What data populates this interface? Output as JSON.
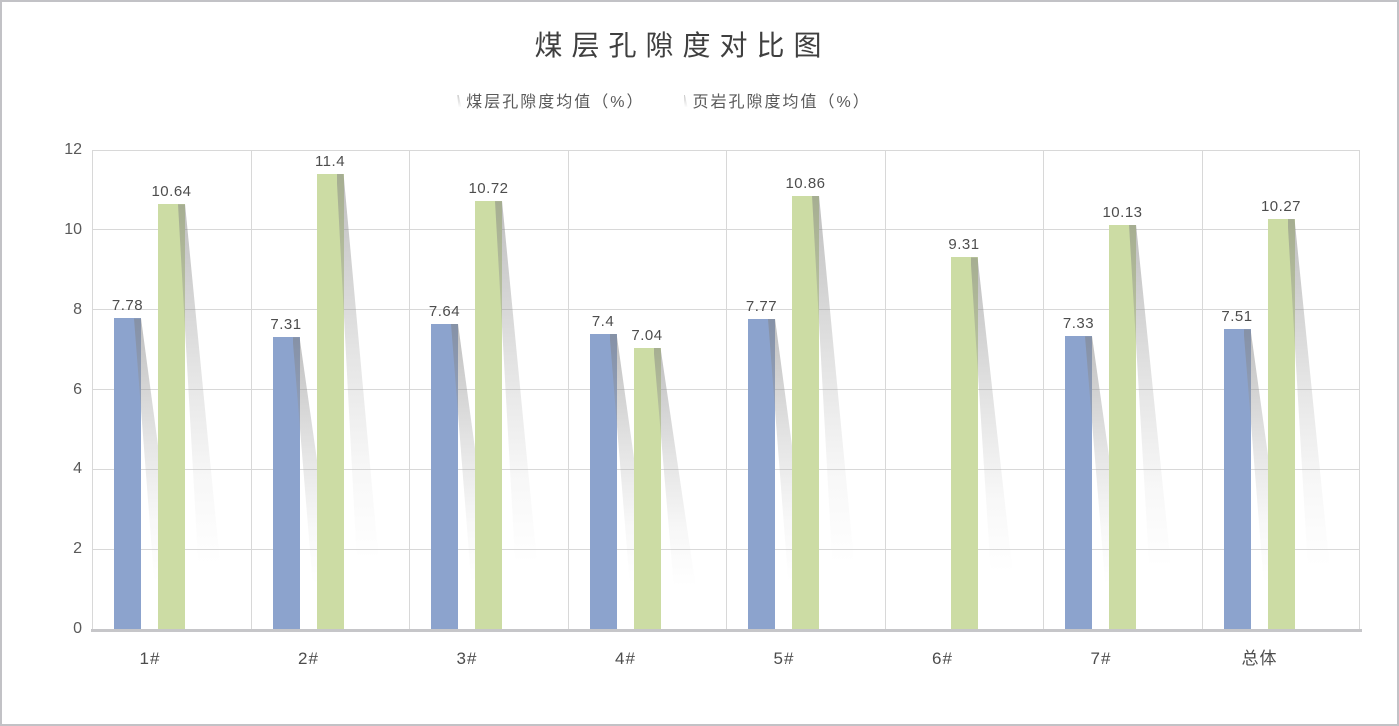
{
  "frame": {
    "background": "#ffffff",
    "border_color": "#c2c2c6"
  },
  "chart_data": {
    "type": "bar",
    "title": "煤层孔隙度对比图",
    "categories": [
      "1#",
      "2#",
      "3#",
      "4#",
      "5#",
      "6#",
      "7#",
      "总体"
    ],
    "series": [
      {
        "key": "coal",
        "name": "煤层孔隙度均值（%）",
        "color": "#8CA3CD",
        "values": [
          7.78,
          7.31,
          7.64,
          7.4,
          7.77,
          null,
          7.33,
          7.51
        ]
      },
      {
        "key": "shale",
        "name": "页岩孔隙度均值（%）",
        "color": "#CCDCA4",
        "values": [
          10.64,
          11.4,
          10.72,
          7.04,
          10.86,
          9.31,
          10.13,
          10.27
        ]
      }
    ],
    "data_labels": {
      "coal": [
        "7.78",
        "7.31",
        "7.64",
        "7.4",
        "7.77",
        null,
        "7.33",
        "7.51"
      ],
      "shale": [
        "10.64",
        "11.4",
        "10.72",
        "7.04",
        "10.86",
        "9.31",
        "10.13",
        "10.27"
      ]
    },
    "ylim": [
      0,
      12
    ],
    "yticks": [
      0,
      2,
      4,
      6,
      8,
      10,
      12
    ],
    "grid": true,
    "legend_position": "top",
    "colors": {
      "gridline": "#d8d8d8",
      "axis_line": "#c6c6c9",
      "title_text": "#3f3f3f",
      "axis_text": "#595959",
      "data_label_text": "#4d4d4d"
    }
  }
}
